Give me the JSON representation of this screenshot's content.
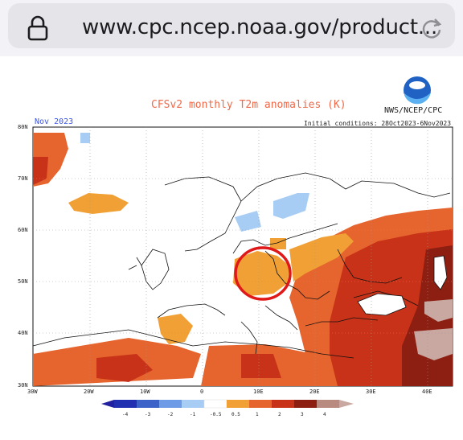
{
  "browser": {
    "url": "www.cpc.ncep.noaa.gov/product...",
    "lock_icon": "lock-icon",
    "reload_icon": "reload-icon"
  },
  "figure": {
    "title": "CFSv2 monthly T2m anomalies (K)",
    "agency": "NWS/NCEP/CPC",
    "initial_conditions": "Initial conditions: 28Oct2023-6Nov2023",
    "month": "Nov 2023",
    "lat_labels": [
      "80N",
      "70N",
      "60N",
      "50N",
      "40N",
      "30N"
    ],
    "lon_labels": [
      "30W",
      "20W",
      "10W",
      "0",
      "10E",
      "20E",
      "30E",
      "40E"
    ],
    "colorbar_labels": [
      "-4",
      "-3",
      "-2",
      "-1",
      "-0.5",
      "0.5",
      "1",
      "2",
      "3",
      "4"
    ],
    "colors": {
      "cold_dark": "#2020a0",
      "cold_mid": "#3c64c8",
      "cold_light": "#6e9be6",
      "cold_pale": "#a8cdf5",
      "neutral": "#ffffff",
      "warm_light": "#f0a035",
      "warm_mid": "#e6642d",
      "warm_strong": "#c83218",
      "warm_dark": "#8c1e12",
      "warm_extreme": "#c8a8a0",
      "highlight": "#e01818"
    }
  }
}
